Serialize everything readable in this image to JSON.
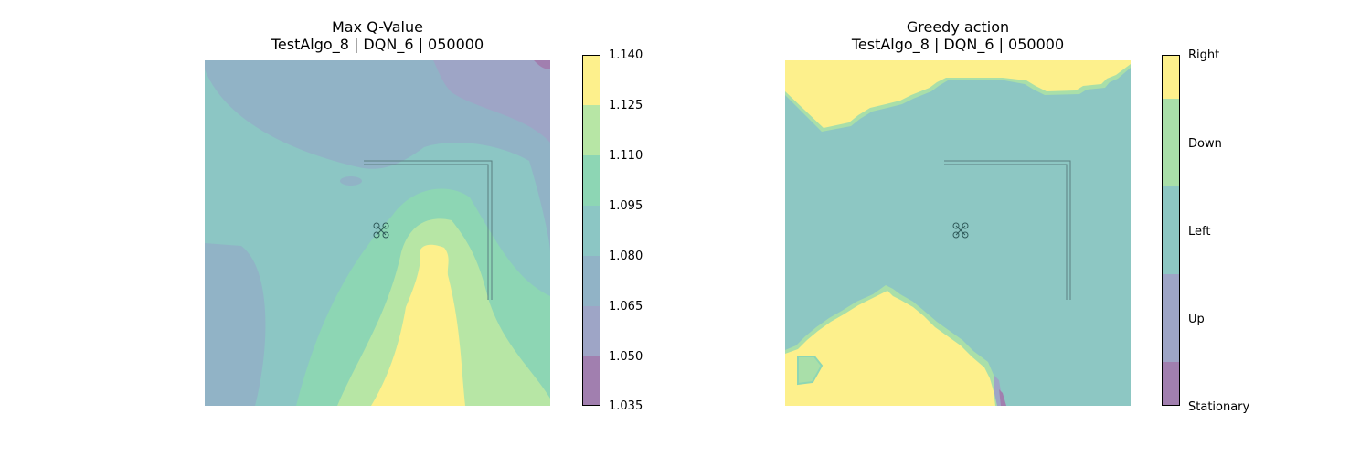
{
  "charts": [
    {
      "title_line1": "Max Q-Value",
      "title_line2": "TestAlgo_8 | DQN_6 | 050000",
      "colorbar_ticks": [
        "1.140",
        "1.125",
        "1.110",
        "1.095",
        "1.080",
        "1.065",
        "1.050",
        "1.035"
      ],
      "colorbar_colors": [
        "#fdf08c",
        "#b7e6a5",
        "#8dd6b4",
        "#8cc6c4",
        "#91b3c6",
        "#9ea5c6",
        "#a17faf"
      ]
    },
    {
      "title_line1": "Greedy action",
      "title_line2": "TestAlgo_8 | DQN_6 | 050000",
      "colorbar_ticks": [
        "Right",
        "Down",
        "Left",
        "Up",
        "Stationary"
      ],
      "colorbar_colors": [
        "#fdf08c",
        "#a9dfa9",
        "#8dc7c3",
        "#9ea5c6",
        "#a17faf"
      ]
    }
  ],
  "chart_data": [
    {
      "type": "heatmap",
      "title": "Max Q-Value\nTestAlgo_8 | DQN_6 | 050000",
      "colorbar": {
        "levels": [
          1.035,
          1.05,
          1.065,
          1.08,
          1.095,
          1.11,
          1.125,
          1.14
        ],
        "tick_labels": [
          "1.035",
          "1.050",
          "1.065",
          "1.080",
          "1.095",
          "1.110",
          "1.125",
          "1.140"
        ]
      },
      "axes_visible": false,
      "regions": [
        {
          "range": "1.050-1.065",
          "location": "top-right corner strip"
        },
        {
          "range": "1.065-1.080",
          "location": "upper band and left-lower region"
        },
        {
          "range": "1.080-1.095",
          "location": "central band"
        },
        {
          "range": "1.095-1.110",
          "location": "ridge toward bottom center"
        },
        {
          "range": "1.110-1.125",
          "location": "around bottom-center peak"
        },
        {
          "range": "1.125-1.140",
          "location": "bottom-center peak"
        }
      ]
    },
    {
      "type": "heatmap",
      "title": "Greedy action\nTestAlgo_8 | DQN_6 | 050000",
      "colorbar": {
        "categories": [
          "Stationary",
          "Up",
          "Left",
          "Down",
          "Right"
        ]
      },
      "axes_visible": false,
      "regions": [
        {
          "action": "Right",
          "location": "top strip and bottom-left blob"
        },
        {
          "action": "Left",
          "location": "majority of field"
        },
        {
          "action": "Down",
          "location": "thin boundaries and small patch bottom-left"
        },
        {
          "action": "Stationary",
          "location": "tiny patch near bottom-left blob edge"
        }
      ]
    }
  ]
}
